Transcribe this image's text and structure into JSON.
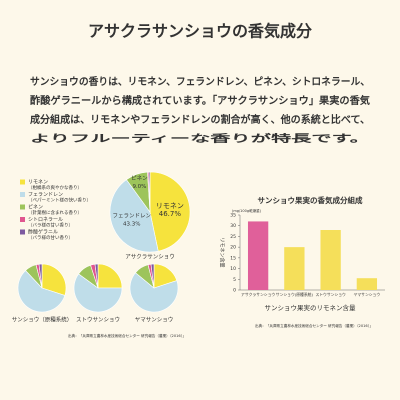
{
  "header": {
    "title": "アサクラサンショウの香気成分"
  },
  "body": {
    "lines": [
      "サンショウの香りは、リモネン、フェランドレン、ピネン、シトロネラール、",
      "酢酸ゲラニールから構成されています。「アサクラサンショウ」果実の香気",
      "成分組成は、リモネンやフェランドレンの割合が高く、他の系統と比べて、",
      "よりフルーティーな香りが特長です。"
    ]
  },
  "chart_data": [
    {
      "type": "pie",
      "title": "アサクラサンショウ",
      "categories": [
        "リモネン",
        "フェランドレン",
        "ピネン",
        "シトロネラール",
        "酢酸ゲラニル"
      ],
      "descriptions": [
        "（柑橘系の爽やかな香り）",
        "（ペパーミント様の快い香り）",
        "（針葉樹に含まれる香り）",
        "（バラ様の甘い香り）",
        "（バラ様の甘い香り）"
      ],
      "values": [
        46.7,
        43.3,
        9.0,
        0.5,
        0.5
      ],
      "value_labels": [
        "46.7%",
        "43.3%",
        "9.0%",
        null,
        null
      ],
      "colors": [
        "#f6e33d",
        "#bfdde9",
        "#9dc45b",
        "#e0568f",
        "#7d5aa0"
      ],
      "source": "出典：「兵庫県立農林水産技術総合センター 研究報告（農業）（2016）」"
    },
    {
      "type": "pie",
      "title": "サンショウ（原種系統）",
      "values": [
        30,
        58,
        8,
        2,
        2
      ],
      "colors": [
        "#f6e33d",
        "#bfdde9",
        "#9dc45b",
        "#e0568f",
        "#7d5aa0"
      ]
    },
    {
      "type": "pie",
      "title": "ストウサンショウ",
      "values": [
        25,
        60,
        10,
        3,
        2
      ],
      "colors": [
        "#f6e33d",
        "#bfdde9",
        "#9dc45b",
        "#e0568f",
        "#7d5aa0"
      ]
    },
    {
      "type": "pie",
      "title": "ヤマサンショウ",
      "values": [
        20,
        66,
        10,
        2,
        2
      ],
      "colors": [
        "#f6e33d",
        "#bfdde9",
        "#9dc45b",
        "#e0568f",
        "#7d5aa0"
      ]
    },
    {
      "type": "bar",
      "title": "サンショウ果実の香気成分組成",
      "unit": "(mg/100g乾燥重)",
      "y_label": "リモネン含量",
      "x_label": "サンショウ果実のリモネン含量",
      "categories": [
        "アサクラサンショウ",
        "サンショウ(原種系統)",
        "ストウサンショウ",
        "ヤマサンショウ"
      ],
      "values": [
        32,
        20,
        28,
        5.5
      ],
      "colors": [
        "#e0609a",
        "#f5df5a",
        "#f5df5a",
        "#f5df5a"
      ],
      "ylim": [
        0,
        35
      ],
      "yticks": [
        0,
        5,
        10,
        15,
        20,
        25,
        30,
        35
      ],
      "source": "出典：「兵庫県立農林水産技術総合センター 研究報告（農業）（2016）」"
    }
  ]
}
